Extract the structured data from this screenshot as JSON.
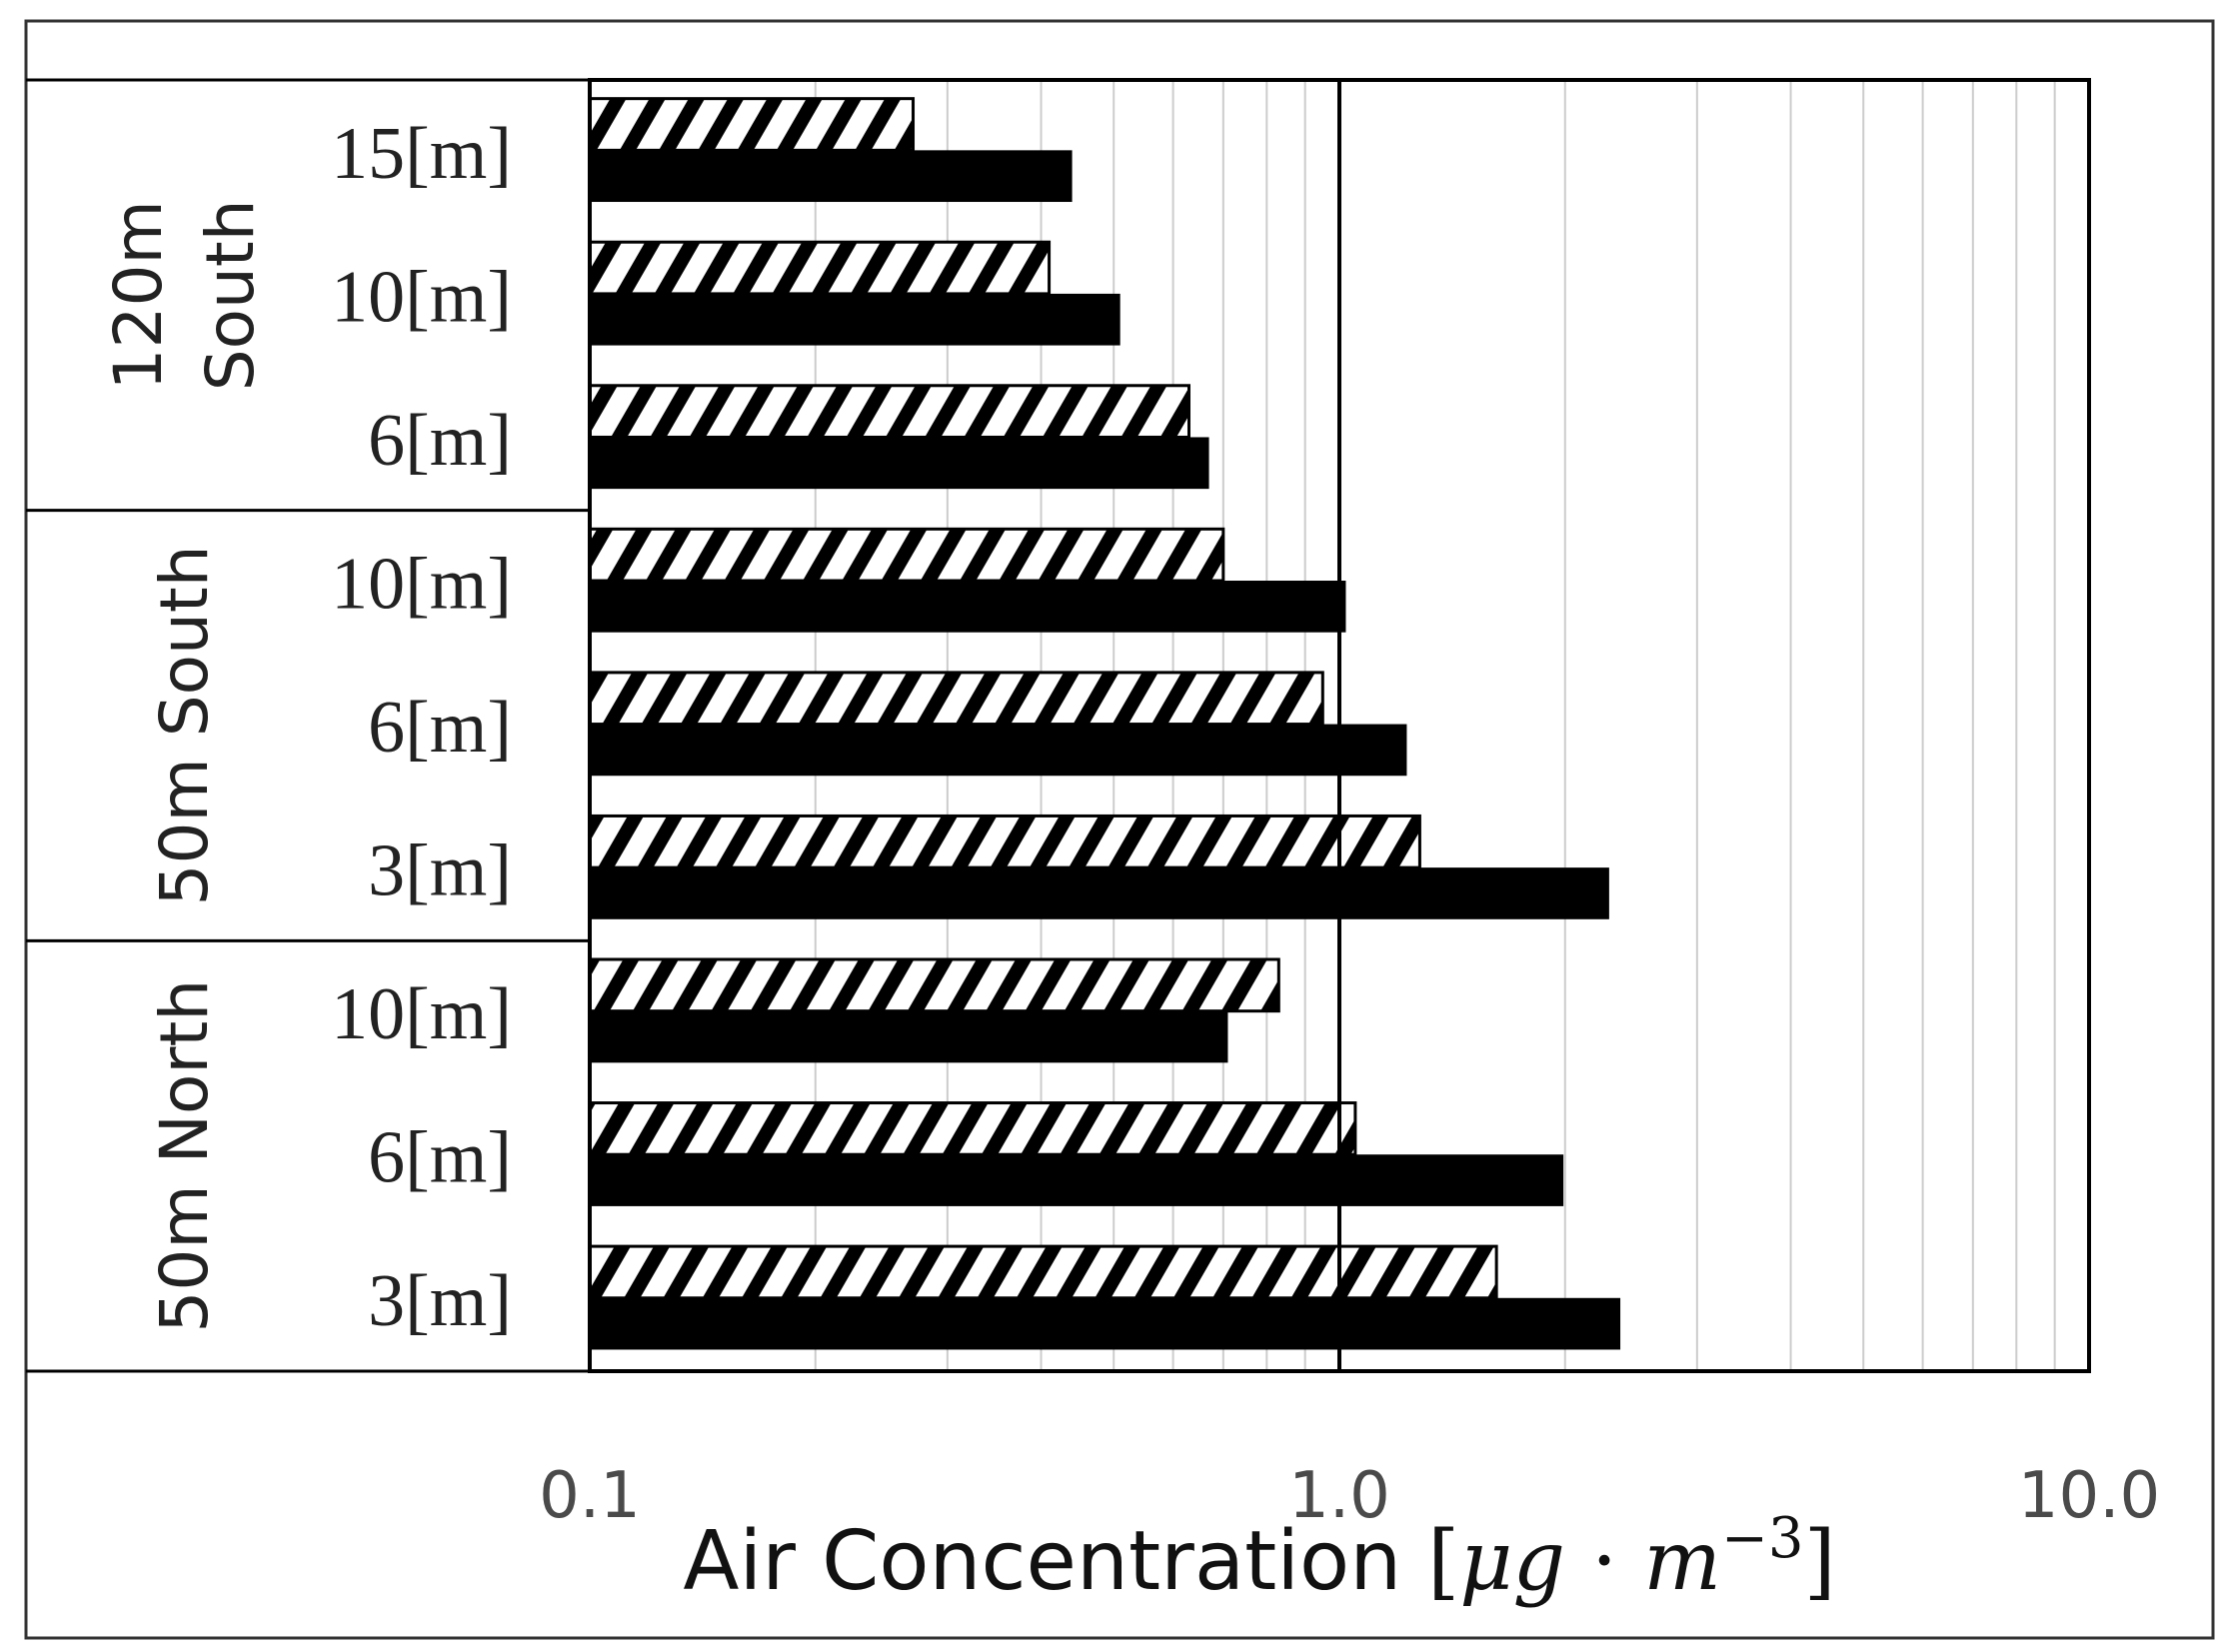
{
  "chart_data": {
    "type": "bar",
    "orientation": "horizontal",
    "xscale": "log",
    "xlim": [
      0.1,
      10.0
    ],
    "xticks": [
      "0.1",
      "1.0",
      "10.0"
    ],
    "xlabel": {
      "prefix": "Air Concentration ",
      "open": "[",
      "mu": "μ",
      "g": "g",
      "dot": " · ",
      "m": "m",
      "exp": "−3",
      "close": "]"
    },
    "grid": "vertical minor+major",
    "groups": [
      {
        "label_lines": [
          "120m",
          "South"
        ],
        "categories": [
          "15[m]",
          "10[m]",
          "6[m]"
        ]
      },
      {
        "label_lines": [
          "50m South"
        ],
        "categories": [
          "10[m]",
          "6[m]",
          "3[m]"
        ]
      },
      {
        "label_lines": [
          "50m North"
        ],
        "categories": [
          "10[m]",
          "6[m]",
          "3[m]"
        ]
      }
    ],
    "series": [
      {
        "style": "hatched",
        "values": [
          0.27,
          0.41,
          0.63,
          0.7,
          0.95,
          1.28,
          0.83,
          1.05,
          1.62
        ]
      },
      {
        "style": "solid",
        "values": [
          0.44,
          0.51,
          0.67,
          1.02,
          1.23,
          2.29,
          0.71,
          1.99,
          2.37
        ]
      }
    ],
    "colors": {
      "solid": "#000000",
      "hatch": "#000000",
      "hatch_bg": "#ffffff",
      "grid": "#cccccc"
    }
  }
}
